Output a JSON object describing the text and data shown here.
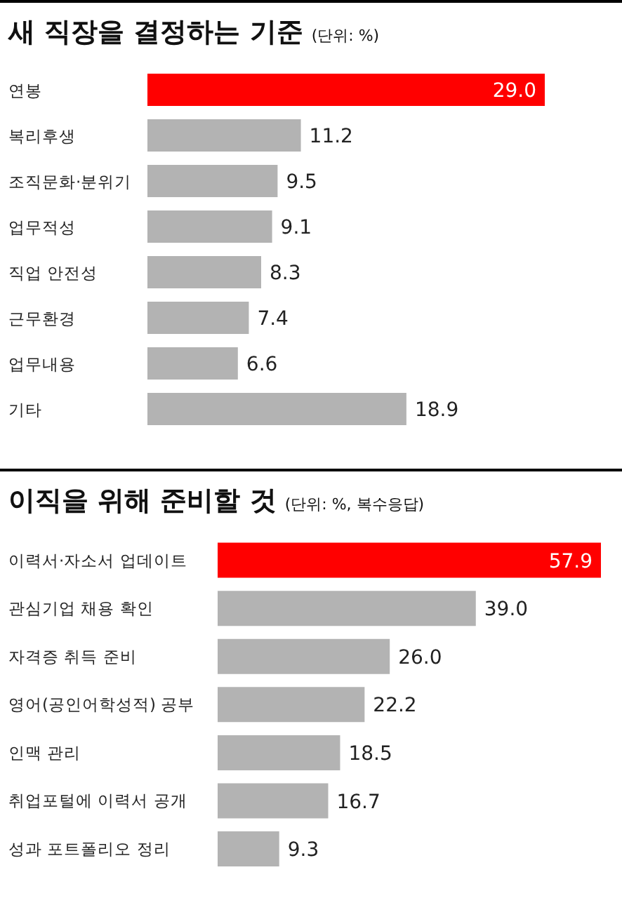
{
  "chart_data": [
    {
      "type": "bar",
      "orientation": "horizontal",
      "title": "새 직장을 결정하는 기준",
      "subtitle": "(단위: %)",
      "categories": [
        "연봉",
        "복리후생",
        "조직문화·분위기",
        "업무적성",
        "직업 안전성",
        "근무환경",
        "업무내용",
        "기타"
      ],
      "values": [
        29.0,
        11.2,
        9.5,
        9.1,
        8.3,
        7.4,
        6.6,
        18.9
      ],
      "colors": [
        "#ff0000",
        "#b3b3b3",
        "#b3b3b3",
        "#b3b3b3",
        "#b3b3b3",
        "#b3b3b3",
        "#b3b3b3",
        "#b3b3b3"
      ],
      "value_labels": [
        "29.0",
        "11.2",
        "9.5",
        "9.1",
        "8.3",
        "7.4",
        "6.6",
        "18.9"
      ]
    },
    {
      "type": "bar",
      "orientation": "horizontal",
      "title": "이직을 위해 준비할 것",
      "subtitle": "(단위: %, 복수응답)",
      "categories": [
        "이력서·자소서 업데이트",
        "관심기업 채용 확인",
        "자격증 취득 준비",
        "영어(공인어학성적) 공부",
        "인맥 관리",
        "취업포털에 이력서 공개",
        "성과 포트폴리오 정리"
      ],
      "values": [
        57.9,
        39.0,
        26.0,
        22.2,
        18.5,
        16.7,
        9.3
      ],
      "colors": [
        "#ff0000",
        "#b3b3b3",
        "#b3b3b3",
        "#b3b3b3",
        "#b3b3b3",
        "#b3b3b3",
        "#b3b3b3"
      ],
      "value_labels": [
        "57.9",
        "39.0",
        "26.0",
        "22.2",
        "18.5",
        "16.7",
        "9.3"
      ]
    }
  ]
}
